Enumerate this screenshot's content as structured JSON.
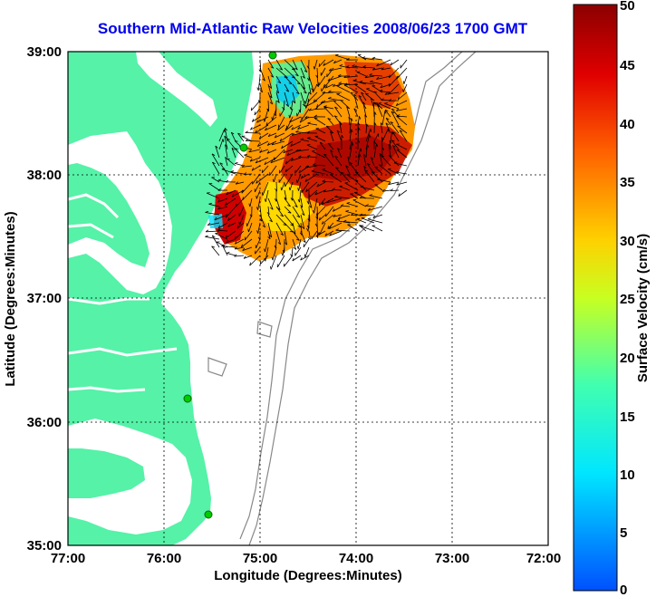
{
  "title": "Southern Mid-Atlantic Raw Velocities 2008/06/23 1700 GMT",
  "map": {
    "lon_range": [
      -77,
      -72
    ],
    "lat_range": [
      35,
      39
    ],
    "x_ticks": [
      "77:00",
      "76:00",
      "75:00",
      "74:00",
      "73:00",
      "72:00"
    ],
    "y_ticks": [
      "39:00",
      "38:00",
      "37:00",
      "36:00",
      "35:00"
    ],
    "xlabel": "Longitude (Degrees:Minutes)",
    "ylabel": "Latitude (Degrees:Minutes)",
    "grid": true,
    "land_color": "#55f2a8",
    "station_color": "#00cc00"
  },
  "colorbar": {
    "label": "Surface Velocity (cm/s)",
    "range": [
      0,
      50
    ],
    "ticks": [
      "50",
      "45",
      "40",
      "35",
      "30",
      "25",
      "20",
      "15",
      "10",
      "5",
      "0"
    ]
  }
}
